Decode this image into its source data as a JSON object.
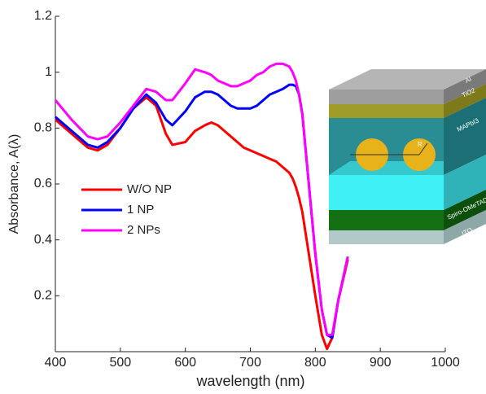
{
  "chart_data": {
    "type": "line",
    "xlabel": "wavelength (nm)",
    "ylabel": "Absorbance, A(λ)",
    "x": [
      400,
      425,
      450,
      465,
      480,
      500,
      520,
      540,
      555,
      570,
      580,
      600,
      615,
      630,
      640,
      650,
      660,
      670,
      680,
      690,
      700,
      710,
      720,
      730,
      740,
      750,
      760,
      765,
      770,
      775,
      780,
      790,
      800,
      810,
      818,
      826,
      835,
      850
    ],
    "series": [
      {
        "name": "W/O NP",
        "color": "#ff0000",
        "values": [
          0.83,
          0.78,
          0.73,
          0.72,
          0.74,
          0.8,
          0.87,
          0.91,
          0.88,
          0.78,
          0.74,
          0.75,
          0.79,
          0.81,
          0.82,
          0.81,
          0.79,
          0.77,
          0.75,
          0.73,
          0.72,
          0.71,
          0.7,
          0.69,
          0.68,
          0.66,
          0.64,
          0.62,
          0.59,
          0.55,
          0.5,
          0.35,
          0.2,
          0.06,
          0.01,
          0.05,
          0.18,
          0.33
        ]
      },
      {
        "name": "1 NP",
        "color": "#0000ff",
        "values": [
          0.84,
          0.79,
          0.74,
          0.73,
          0.75,
          0.8,
          0.87,
          0.92,
          0.89,
          0.83,
          0.81,
          0.86,
          0.91,
          0.93,
          0.93,
          0.92,
          0.9,
          0.88,
          0.87,
          0.87,
          0.87,
          0.88,
          0.9,
          0.92,
          0.93,
          0.94,
          0.955,
          0.955,
          0.95,
          0.92,
          0.85,
          0.6,
          0.35,
          0.15,
          0.06,
          0.05,
          0.18,
          0.34
        ]
      },
      {
        "name": "2 NPs",
        "color": "#ff00ff",
        "values": [
          0.9,
          0.83,
          0.77,
          0.76,
          0.77,
          0.82,
          0.88,
          0.94,
          0.93,
          0.9,
          0.9,
          0.96,
          1.01,
          1.0,
          0.99,
          0.97,
          0.96,
          0.95,
          0.95,
          0.96,
          0.97,
          0.99,
          1.0,
          1.02,
          1.03,
          1.03,
          1.02,
          1.0,
          0.97,
          0.92,
          0.85,
          0.6,
          0.35,
          0.15,
          0.06,
          0.06,
          0.18,
          0.34
        ]
      }
    ],
    "xlim": [
      400,
      1000
    ],
    "xticks": [
      400,
      500,
      600,
      700,
      800,
      900,
      1000
    ],
    "ylim": [
      0,
      1.2
    ],
    "yticks": [
      0.2,
      0.4,
      0.6,
      0.8,
      1,
      1.2
    ],
    "legend": "upper-left"
  },
  "inset": {
    "labels": {
      "al": "Al",
      "tio2": "TiO2",
      "mapbi3": "MAPbI3",
      "r": "R",
      "spiro": "Spiro-OMeTAD",
      "ito": "ITO"
    }
  }
}
